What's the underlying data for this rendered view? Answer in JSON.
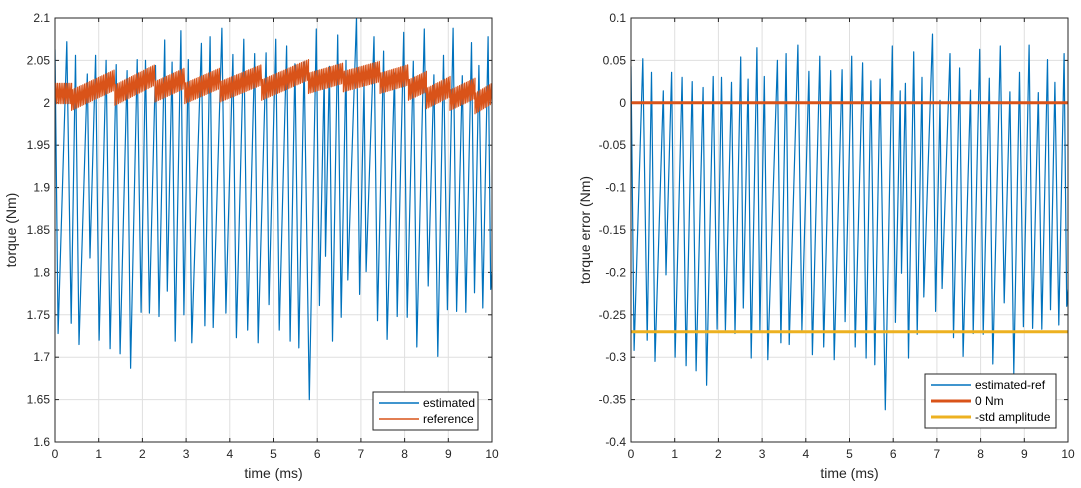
{
  "chart_data": [
    {
      "type": "line",
      "xlabel": "time (ms)",
      "ylabel": "torque (Nm)",
      "xlim": [
        0,
        10
      ],
      "ylim": [
        1.6,
        2.1
      ],
      "xticks": [
        "0",
        "1",
        "2",
        "3",
        "4",
        "5",
        "6",
        "7",
        "8",
        "9",
        "10"
      ],
      "yticks": [
        "1.6",
        "1.65",
        "1.7",
        "1.75",
        "1.8",
        "1.85",
        "1.9",
        "1.95",
        "2",
        "2.05",
        "2.1"
      ],
      "grid": true,
      "legend_position": "bottom-right",
      "series": [
        {
          "name": "estimated",
          "color": "#0072BD",
          "x": [
            0,
            0.07,
            0.27,
            0.37,
            0.47,
            0.55,
            0.74,
            0.8,
            0.93,
            1.01,
            1.17,
            1.26,
            1.4,
            1.49,
            1.65,
            1.73,
            1.88,
            1.97,
            2.07,
            2.16,
            2.3,
            2.38,
            2.51,
            2.57,
            2.68,
            2.75,
            2.88,
            2.95,
            3.05,
            3.13,
            3.35,
            3.43,
            3.55,
            3.62,
            3.82,
            3.91,
            4.07,
            4.15,
            4.32,
            4.41,
            4.57,
            4.65,
            4.83,
            4.9,
            5.05,
            5.13,
            5.3,
            5.38,
            5.49,
            5.58,
            5.7,
            5.82,
            5.98,
            6.05,
            6.16,
            6.19,
            6.28,
            6.35,
            6.47,
            6.55,
            6.66,
            6.7,
            6.9,
            6.97,
            7.07,
            7.12,
            7.3,
            7.38,
            7.52,
            7.6,
            7.77,
            7.83,
            7.98,
            8.06,
            8.2,
            8.28,
            8.45,
            8.54,
            8.67,
            8.76,
            8.89,
            8.98,
            9.11,
            9.19,
            9.32,
            9.4,
            9.53,
            9.6,
            9.7,
            9.79,
            9.91,
            9.97,
            10
          ],
          "y": [
            2.063,
            1.728,
            2.072,
            1.74,
            2.056,
            1.715,
            2.034,
            1.817,
            2.056,
            1.72,
            2.05,
            1.71,
            2.045,
            1.704,
            2.038,
            1.687,
            2.051,
            1.753,
            2.05,
            1.752,
            2.044,
            1.748,
            2.074,
            1.778,
            2.048,
            1.719,
            2.085,
            1.75,
            2.051,
            1.717,
            2.07,
            1.737,
            2.078,
            1.735,
            2.088,
            1.752,
            2.057,
            1.723,
            2.075,
            1.732,
            2.058,
            1.717,
            2.059,
            1.762,
            2.075,
            1.732,
            2.067,
            1.719,
            2.046,
            1.711,
            2.048,
            1.65,
            2.087,
            1.761,
            2.034,
            1.819,
            2.043,
            1.719,
            2.08,
            1.747,
            2.05,
            1.791,
            2.101,
            1.774,
            2.023,
            1.801,
            2.078,
            1.743,
            2.061,
            1.721,
            2.035,
            1.748,
            2.083,
            1.747,
            2.049,
            1.712,
            2.087,
            1.784,
            2.033,
            1.701,
            2.056,
            1.756,
            2.088,
            1.754,
            2.032,
            1.753,
            2.071,
            1.776,
            2.044,
            1.758,
            2.078,
            1.78,
            1.8
          ]
        },
        {
          "name": "reference",
          "color": "#D95319",
          "ripple_amplitude": 0.012,
          "segments": [
            {
              "t": [
                0,
                0.38
              ],
              "y": [
                2.011,
                2.011
              ]
            },
            {
              "t": [
                0.38,
                1.37
              ],
              "y": [
                2.003,
                2.027
              ]
            },
            {
              "t": [
                1.37,
                2.29
              ],
              "y": [
                2.009,
                2.033
              ]
            },
            {
              "t": [
                2.29,
                2.97
              ],
              "y": [
                2.013,
                2.029
              ]
            },
            {
              "t": [
                2.97,
                3.78
              ],
              "y": [
                2.011,
                2.029
              ]
            },
            {
              "t": [
                3.78,
                4.73
              ],
              "y": [
                2.013,
                2.033
              ]
            },
            {
              "t": [
                4.73,
                5.8
              ],
              "y": [
                2.015,
                2.039
              ]
            },
            {
              "t": [
                5.8,
                6.6
              ],
              "y": [
                2.023,
                2.035
              ]
            },
            {
              "t": [
                6.6,
                7.44
              ],
              "y": [
                2.025,
                2.037
              ]
            },
            {
              "t": [
                7.44,
                8.09
              ],
              "y": [
                2.023,
                2.033
              ]
            },
            {
              "t": [
                8.09,
                8.5
              ],
              "y": [
                2.015,
                2.025
              ]
            },
            {
              "t": [
                8.5,
                9.04
              ],
              "y": [
                2.005,
                2.019
              ]
            },
            {
              "t": [
                9.04,
                9.61
              ],
              "y": [
                2.003,
                2.017
              ]
            },
            {
              "t": [
                9.61,
                10
              ],
              "y": [
                1.999,
                2.011
              ]
            }
          ]
        }
      ]
    },
    {
      "type": "line",
      "xlabel": "time (ms)",
      "ylabel": "torque error (Nm)",
      "xlim": [
        0,
        10
      ],
      "ylim": [
        -0.4,
        0.1
      ],
      "xticks": [
        "0",
        "1",
        "2",
        "3",
        "4",
        "5",
        "6",
        "7",
        "8",
        "9",
        "10"
      ],
      "yticks": [
        "-0.4",
        "-0.35",
        "-0.3",
        "-0.25",
        "-0.2",
        "-0.15",
        "-0.1",
        "-0.05",
        "0",
        "0.05",
        "0.1"
      ],
      "grid": true,
      "legend_position": "bottom-right",
      "series": [
        {
          "name": "estimated-ref",
          "color": "#0072BD",
          "x": [
            0,
            0.07,
            0.27,
            0.37,
            0.47,
            0.55,
            0.74,
            0.8,
            0.93,
            1.01,
            1.17,
            1.26,
            1.4,
            1.49,
            1.65,
            1.73,
            1.88,
            1.97,
            2.07,
            2.16,
            2.3,
            2.38,
            2.51,
            2.57,
            2.68,
            2.75,
            2.88,
            2.95,
            3.05,
            3.13,
            3.35,
            3.43,
            3.55,
            3.62,
            3.82,
            3.91,
            4.07,
            4.15,
            4.32,
            4.41,
            4.57,
            4.65,
            4.83,
            4.9,
            5.05,
            5.13,
            5.3,
            5.38,
            5.49,
            5.58,
            5.7,
            5.82,
            5.98,
            6.05,
            6.16,
            6.19,
            6.28,
            6.35,
            6.47,
            6.55,
            6.66,
            6.7,
            6.9,
            6.97,
            7.07,
            7.12,
            7.3,
            7.38,
            7.52,
            7.6,
            7.77,
            7.83,
            7.98,
            8.06,
            8.2,
            8.28,
            8.45,
            8.54,
            8.67,
            8.76,
            8.89,
            8.98,
            9.11,
            9.19,
            9.32,
            9.4,
            9.53,
            9.6,
            9.7,
            9.79,
            9.91,
            9.97,
            10
          ],
          "y": [
            0.043,
            -0.292,
            0.052,
            -0.28,
            0.036,
            -0.305,
            0.014,
            -0.203,
            0.036,
            -0.3,
            0.03,
            -0.31,
            0.025,
            -0.316,
            0.018,
            -0.333,
            0.031,
            -0.267,
            0.03,
            -0.268,
            0.024,
            -0.272,
            0.054,
            -0.242,
            0.028,
            -0.301,
            0.065,
            -0.27,
            0.031,
            -0.303,
            0.05,
            -0.283,
            0.058,
            -0.285,
            0.068,
            -0.268,
            0.037,
            -0.297,
            0.055,
            -0.288,
            0.038,
            -0.303,
            0.039,
            -0.258,
            0.055,
            -0.288,
            0.047,
            -0.301,
            0.026,
            -0.309,
            0.028,
            -0.362,
            0.067,
            -0.259,
            0.014,
            -0.201,
            0.023,
            -0.301,
            0.06,
            -0.273,
            0.03,
            -0.229,
            0.081,
            -0.246,
            0.003,
            -0.219,
            0.058,
            -0.277,
            0.041,
            -0.299,
            0.015,
            -0.272,
            0.063,
            -0.273,
            0.029,
            -0.308,
            0.067,
            -0.236,
            0.013,
            -0.319,
            0.036,
            -0.264,
            0.068,
            -0.266,
            0.012,
            -0.267,
            0.051,
            -0.244,
            0.024,
            -0.262,
            0.058,
            -0.24,
            -0.22
          ]
        },
        {
          "name": "0 Nm",
          "color": "#D95319",
          "constant": 0
        },
        {
          "name": "-std amplitude",
          "color": "#EDB120",
          "constant": -0.27
        }
      ]
    }
  ]
}
